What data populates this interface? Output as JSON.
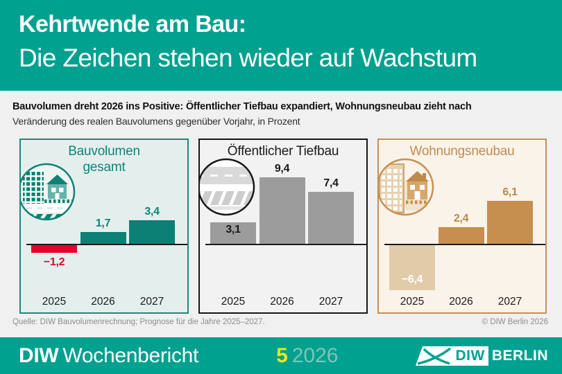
{
  "header": {
    "title_line1": "Kehrtwende am Bau:",
    "title_line2": "Die Zeichen stehen wieder auf Wachstum"
  },
  "subtitle": {
    "headline": "Bauvolumen dreht 2026 ins Positive: Öffentlicher Tiefbau expandiert, Wohnungsneubau zieht nach",
    "description": "Veränderung des realen Bauvolumens gegenüber Vorjahr, in Prozent"
  },
  "chart_data": [
    {
      "type": "bar",
      "title": "Bauvolumen gesamt",
      "title_lines": [
        "Bauvolumen",
        "gesamt"
      ],
      "categories": [
        "2025",
        "2026",
        "2027"
      ],
      "values": [
        -1.2,
        1.7,
        3.4
      ],
      "value_labels": [
        "−1,2",
        "1,7",
        "3,4"
      ],
      "unit": "%",
      "baseline": 0,
      "icon": "buildings-road-icon",
      "style": {
        "border": "#1B897D",
        "background": "#E4EFED",
        "title_color": "#0E8478",
        "bar_colors": [
          "#E3032E",
          "#0A8174",
          "#0A8174"
        ],
        "label_colors": [
          "#E3032E",
          "#0E8478",
          "#0E8478"
        ],
        "label_pos": [
          "below",
          "above",
          "above"
        ]
      }
    },
    {
      "type": "bar",
      "title": "Öffentlicher Tiefbau",
      "title_lines": [
        "Öffentlicher Tiefbau"
      ],
      "categories": [
        "2025",
        "2026",
        "2027"
      ],
      "values": [
        3.1,
        9.4,
        7.4
      ],
      "value_labels": [
        "3,1",
        "9,4",
        "7,4"
      ],
      "unit": "%",
      "baseline": 0,
      "icon": "road-railway-icon",
      "style": {
        "border": "#161616",
        "background": "#F2F2F2",
        "title_color": "#1A1A1A",
        "bar_colors": [
          "#9C9C9C",
          "#9C9C9C",
          "#9C9C9C"
        ],
        "label_colors": [
          "#1A1A1A",
          "#1A1A1A",
          "#1A1A1A"
        ],
        "label_pos": [
          "inside-top",
          "above",
          "above"
        ]
      }
    },
    {
      "type": "bar",
      "title": "Wohnungsneubau",
      "title_lines": [
        "Wohnungsneubau"
      ],
      "categories": [
        "2025",
        "2026",
        "2027"
      ],
      "values": [
        -6.4,
        2.4,
        6.1
      ],
      "value_labels": [
        "−6,4",
        "2,4",
        "6,1"
      ],
      "unit": "%",
      "baseline": 0,
      "icon": "buildings-house-icon",
      "style": {
        "border": "#C68F4F",
        "background": "#FAF3EA",
        "title_color": "#C28C4E",
        "bar_colors": [
          "#E2CBA9",
          "#C68F4F",
          "#C68F4F"
        ],
        "label_colors": [
          "#FFFFFF",
          "#BA894C",
          "#BA894C"
        ],
        "label_pos": [
          "inside-bottom",
          "above",
          "above"
        ]
      }
    }
  ],
  "source": {
    "left": "Quelle: DIW Bauvolumenrechnung; Prognose für die Jahre 2025–2027.",
    "right": "© DIW Berlin 2026"
  },
  "footer": {
    "brand": "DIW",
    "brand_suffix": "Wochenbericht",
    "issue_number": "5",
    "issue_year": "2026",
    "logo_diw": "DIW",
    "logo_berlin": "BERLIN"
  },
  "colors": {
    "brand_teal": "#00A18F",
    "accent_red": "#E3032E",
    "accent_gray": "#9C9C9C",
    "accent_tan": "#C68F4F",
    "issue_yellow": "#F1E613",
    "issue_pale_teal": "#7FC4BB",
    "page_background": "#F0F0F0"
  }
}
